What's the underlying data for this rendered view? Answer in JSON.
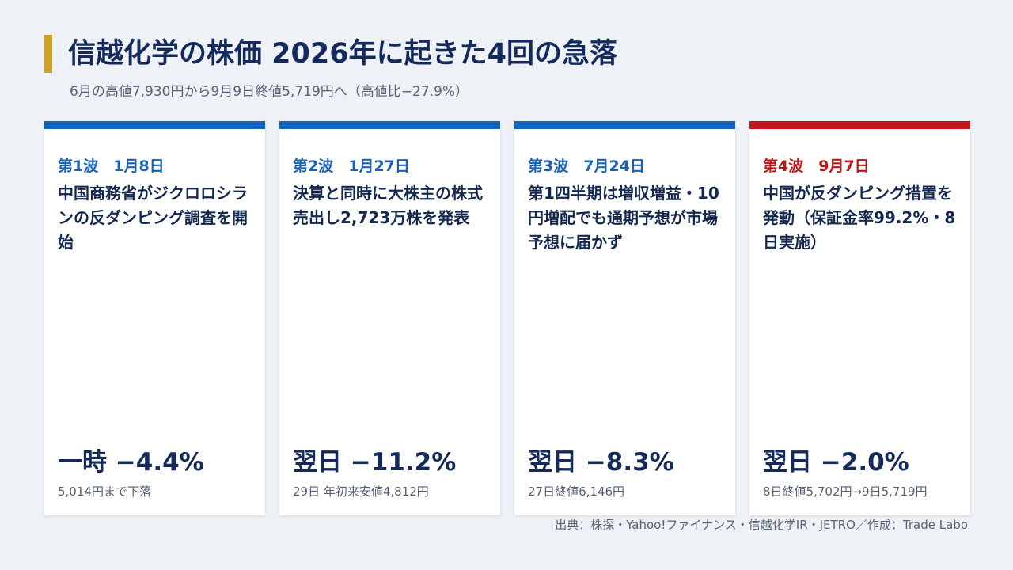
{
  "header": {
    "title": "信越化学の株価 2026年に起きた4回の急落",
    "subtitle": "6月の高値7,930円から9月9日終値5,719円へ（高値比−27.9%）"
  },
  "cards": [
    {
      "wave": "第1波　1月8日",
      "description": "中国商務省がジクロロシランの反ダンピング調査を開始",
      "impact": "一時 −4.4%",
      "note": "5,014円まで下落",
      "accent": "#1565c0"
    },
    {
      "wave": "第2波　1月27日",
      "description": "決算と同時に大株主の株式売出し2,723万株を発表",
      "impact": "翌日 −11.2%",
      "note": "29日 年初来安値4,812円",
      "accent": "#1565c0"
    },
    {
      "wave": "第3波　7月24日",
      "description": "第1四半期は増収増益・10円増配でも通期予想が市場予想に届かず",
      "impact": "翌日 −8.3%",
      "note": "27日終値6,146円",
      "accent": "#1565c0"
    },
    {
      "wave": "第4波　9月7日",
      "description": "中国が反ダンピング措置を発動（保証金率99.2%・8日実施）",
      "impact": "翌日 −2.0%",
      "note": "8日終値5,702円→9日5,719円",
      "accent": "#c0161c"
    }
  ],
  "footer": {
    "source": "出典：株探・Yahoo!ファイナンス・信越化学IR・JETRO／作成：Trade Labo"
  }
}
